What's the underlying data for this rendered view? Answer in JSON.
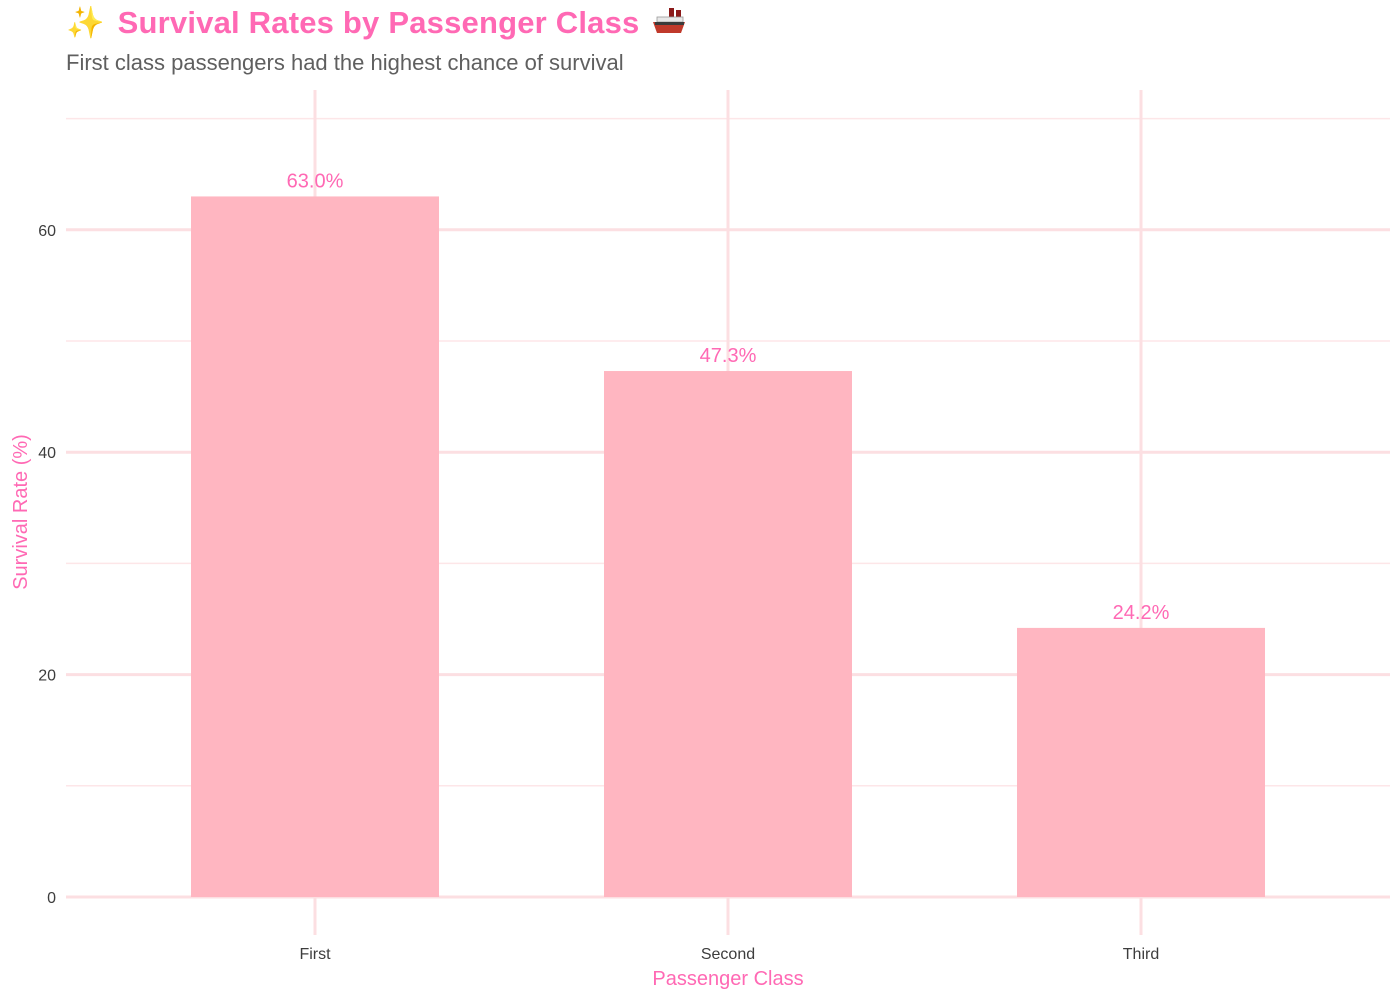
{
  "header": {
    "title_prefix": "✨",
    "title_text": "Survival Rates by Passenger Class",
    "subtitle": "First class passengers had the highest chance of survival"
  },
  "colors": {
    "bar": "#ffb6c1",
    "accent": "#ff69b4",
    "grid": "#fde6e8",
    "grid_major": "#fcdfe2"
  },
  "icons": {
    "title_prefix_icon": "sparkles-icon",
    "title_suffix_icon": "ship-icon"
  },
  "chart_data": {
    "type": "bar",
    "categories": [
      "First",
      "Second",
      "Third"
    ],
    "values": [
      63.0,
      47.3,
      24.2
    ],
    "value_labels": [
      "63.0%",
      "47.3%",
      "24.2%"
    ],
    "xlabel": "Passenger Class",
    "ylabel": "Survival Rate (%)",
    "ylim": [
      0,
      70
    ],
    "yticks": [
      0,
      20,
      40,
      60
    ],
    "grid": true,
    "legend": "none"
  }
}
